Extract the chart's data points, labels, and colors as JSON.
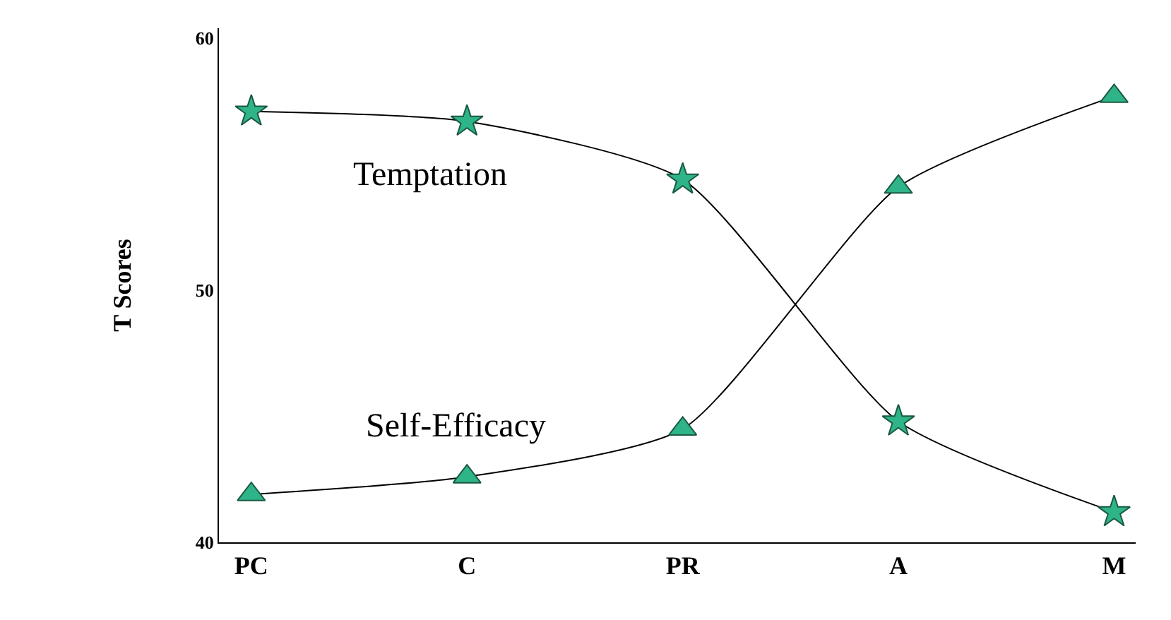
{
  "chart_data": {
    "type": "line",
    "ylabel": "T Scores",
    "categories": [
      "PC",
      "C",
      "PR",
      "A",
      "M"
    ],
    "series": [
      {
        "name": "Temptation",
        "color": "#2fb48a",
        "marker": "star",
        "values": [
          57.1,
          56.7,
          54.4,
          44.8,
          41.2
        ]
      },
      {
        "name": "Self-Efficacy",
        "color": "#2fb48a",
        "marker": "triangle",
        "values": [
          41.9,
          42.6,
          44.5,
          54.1,
          57.7
        ]
      }
    ],
    "ylim": [
      40,
      60.4
    ],
    "yticks": [
      40,
      50,
      60
    ],
    "grid": false,
    "legend": false,
    "line_style": "solid"
  }
}
